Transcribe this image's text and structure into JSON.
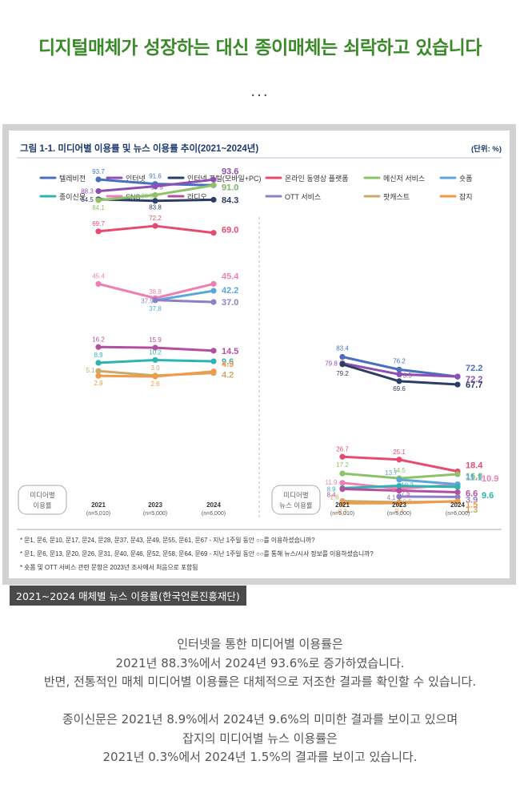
{
  "page": {
    "headline": "디지털매체가 성장하는 대신 종이매체는 쇠락하고 있습니다",
    "dots": "...",
    "caption": "2021~2024 매체별 뉴스 이용률(한국언론진흥재단)",
    "body_lines": [
      "인터넷을 통한 미디어별 이용률은",
      "2021년 88.3%에서 2024년 93.6%로 증가하였습니다.",
      "반면, 전통적인 매체 미디어별 이용률은 대체적으로 저조한 결과를 확인할 수 있습니다.",
      "",
      "종이신문은 2021년 8.9%에서 2024년 9.6%의 미미한 결과를 보이고 있으며",
      "잡지의 미디어별 뉴스 이용률은",
      "2021년 0.3%에서 2024년 1.5%의 결과를 보이고 있습니다."
    ]
  },
  "chart_data": {
    "type": "line",
    "title": "그림 1-1. 미디어별 이용률 및 뉴스 이용률 추이(2021~2024년)",
    "unit": "(단위: %)",
    "colors": {
      "tv": "#4a6fbf",
      "internet": "#8e4fb3",
      "portal": "#2c3e66",
      "video": "#e84a6f",
      "messenger": "#8dc26a",
      "shortform": "#5aa7db",
      "newspaper": "#2cb5b0",
      "sns": "#ee7fb3",
      "radio": "#b44fa0",
      "ott": "#8c7fc7",
      "podcast": "#c8aa6a",
      "magazine": "#f09a4a"
    },
    "legend": [
      {
        "key": "tv",
        "label": "텔레비전"
      },
      {
        "key": "internet",
        "label": "인터넷"
      },
      {
        "key": "portal",
        "label": "인터넷 포털(모바일+PC)"
      },
      {
        "key": "video",
        "label": "온라인 동영상 플랫폼"
      },
      {
        "key": "messenger",
        "label": "메신저 서비스"
      },
      {
        "key": "shortform",
        "label": "숏폼"
      },
      {
        "key": "newspaper",
        "label": "종이신문"
      },
      {
        "key": "sns",
        "label": "SNS"
      },
      {
        "key": "radio",
        "label": "라디오"
      },
      {
        "key": "ott",
        "label": "OTT 서비스"
      },
      {
        "key": "podcast",
        "label": "팟캐스트"
      },
      {
        "key": "magazine",
        "label": "잡지"
      }
    ],
    "x_years": [
      "2021",
      "2023",
      "2024"
    ],
    "x_ns": [
      "(n=5,010)",
      "(n=5,000)",
      "(n=6,000)"
    ],
    "panels": [
      {
        "name": "media",
        "label_lines": [
          "미디어별",
          "이용률"
        ],
        "series": [
          {
            "key": "tv",
            "values": [
              93.7,
              91.6,
              91.0
            ]
          },
          {
            "key": "internet",
            "values": [
              88.3,
              90.5,
              93.6
            ]
          },
          {
            "key": "portal",
            "values": [
              84.5,
              83.8,
              84.3
            ]
          },
          {
            "key": "messenger",
            "values": [
              84.1,
              86.5,
              91.0
            ]
          },
          {
            "key": "video",
            "values": [
              69.7,
              72.2,
              69.0
            ]
          },
          {
            "key": "sns",
            "values": [
              45.4,
              38.8,
              45.4
            ]
          },
          {
            "key": "shortform",
            "values": [
              null,
              37.8,
              42.2
            ]
          },
          {
            "key": "ott",
            "values": [
              null,
              37.9,
              37.0
            ]
          },
          {
            "key": "radio",
            "values": [
              16.2,
              15.9,
              14.5
            ]
          },
          {
            "key": "newspaper",
            "values": [
              8.9,
              10.2,
              9.6
            ]
          },
          {
            "key": "podcast",
            "values": [
              5.1,
              3.0,
              4.2
            ]
          },
          {
            "key": "magazine",
            "values": [
              2.9,
              2.6,
              4.9
            ]
          }
        ]
      },
      {
        "name": "news",
        "label_lines": [
          "미디어별",
          "뉴스 이용률"
        ],
        "series": [
          {
            "key": "tv",
            "values": [
              83.4,
              76.2,
              72.2
            ]
          },
          {
            "key": "internet",
            "values": [
              79.8,
              73.5,
              72.2
            ]
          },
          {
            "key": "portal",
            "values": [
              79.2,
              69.6,
              67.7
            ]
          },
          {
            "key": "video",
            "values": [
              26.7,
              25.1,
              18.4
            ]
          },
          {
            "key": "messenger",
            "values": [
              17.2,
              14.5,
              16.8
            ]
          },
          {
            "key": "sns",
            "values": [
              11.9,
              8.6,
              10.9
            ]
          },
          {
            "key": "shortform",
            "values": [
              null,
              13.7,
              11.1
            ]
          },
          {
            "key": "newspaper",
            "values": [
              8.9,
              10.2,
              9.6
            ]
          },
          {
            "key": "radio",
            "values": [
              8.4,
              7.5,
              6.6
            ]
          },
          {
            "key": "ott",
            "values": [
              null,
              4.1,
              3.9
            ]
          },
          {
            "key": "podcast",
            "values": [
              1.6,
              0.9,
              1.3
            ]
          },
          {
            "key": "magazine",
            "values": [
              0.3,
              0.4,
              1.5
            ]
          }
        ]
      }
    ],
    "notes": [
      "* 문1, 문6, 문10, 문17, 문24, 문28, 문37, 문43, 문49, 문55, 문61, 문67 - 지난 1주일 동안 ○○를 이용하셨습니까?",
      "* 문1, 문6, 문13, 문20, 문26, 문31, 문40, 문46, 문52, 문58, 문64, 문69 - 지난 1주일 동안 ○○를 통해 뉴스/시사 정보를 이용하셨습니까?",
      "* 숏폼 및 OTT 서비스 관련 문항은 2023년 조사에서 처음으로 포함됨"
    ]
  }
}
